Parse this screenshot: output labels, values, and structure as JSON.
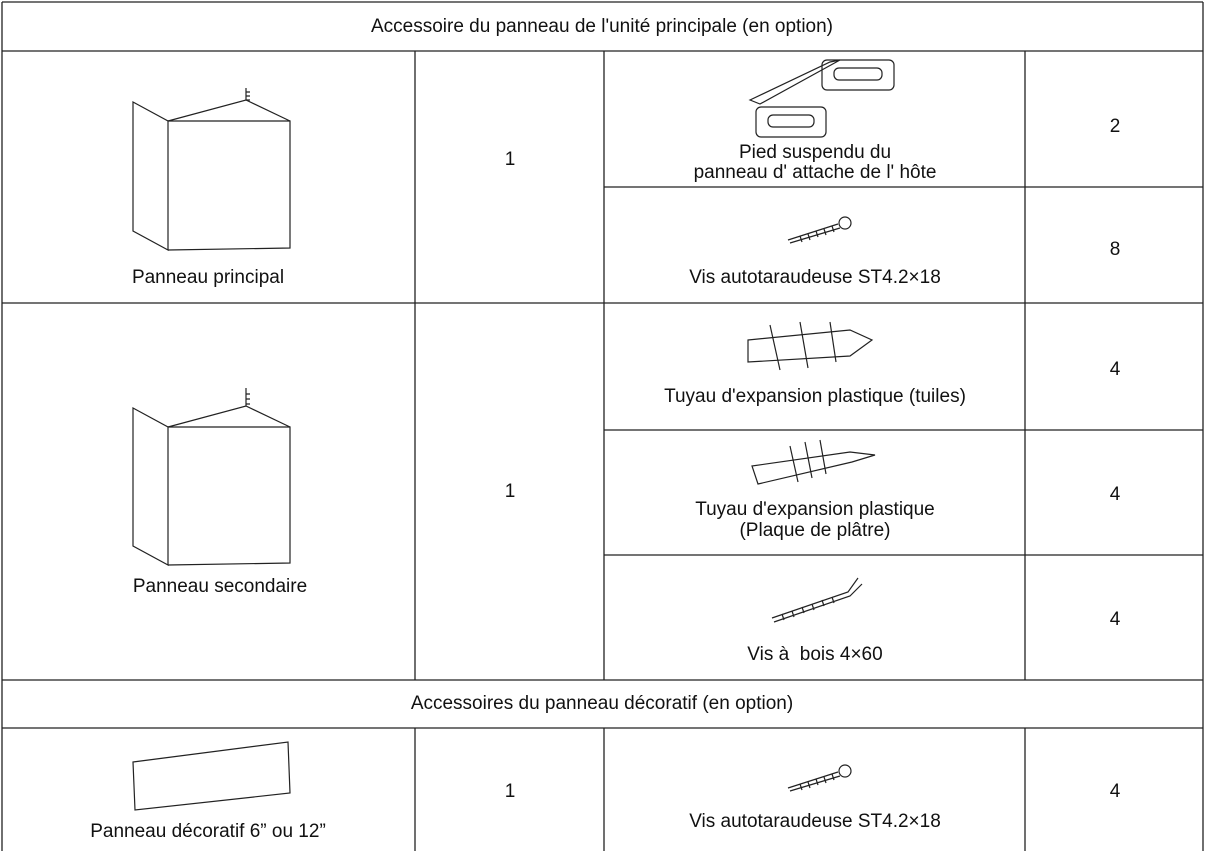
{
  "sections": [
    {
      "title": "Accessoire du panneau de l'unité principale (en option)",
      "groups": [
        {
          "panel": "Panneau principal",
          "quantity": 1,
          "items": [
            {
              "label": [
                "Pied suspendu du",
                "panneau d' attache de l' hôte"
              ],
              "quantity": 2
            },
            {
              "label": [
                "Vis autotaraudeuse ST4.2×18"
              ],
              "quantity": 8
            }
          ]
        },
        {
          "panel": "Panneau secondaire",
          "quantity": 1,
          "items": [
            {
              "label": [
                "Tuyau d'expansion plastique (tuiles)"
              ],
              "quantity": 4
            },
            {
              "label": [
                "Tuyau d'expansion plastique",
                "(Plaque de plâtre)"
              ],
              "quantity": 4
            },
            {
              "label": [
                "Vis à  bois 4×60"
              ],
              "quantity": 4
            }
          ]
        }
      ]
    },
    {
      "title": "Accessoires du panneau décoratif (en option)",
      "groups": [
        {
          "panel": "Panneau décoratif 6” ou 12”",
          "quantity": 1,
          "items": [
            {
              "label": [
                "Vis autotaraudeuse ST4.2×18"
              ],
              "quantity": 4
            }
          ]
        }
      ]
    }
  ]
}
